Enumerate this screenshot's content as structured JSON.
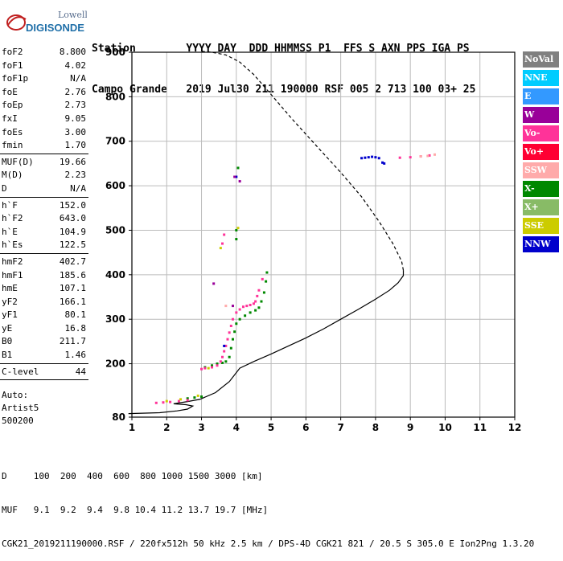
{
  "logo": {
    "line1": "Lowell",
    "line2": "DIGISONDE"
  },
  "header": {
    "row1": "Station        YYYY DAY  DDD HHMMSS P1  FFS S AXN PPS IGA PS",
    "row2": "Campo Grande   2019 Jul30 211 190000 RSF 005 2 713 100 03+ 25"
  },
  "params": {
    "group1": [
      {
        "label": "foF2",
        "value": "8.800"
      },
      {
        "label": "foF1",
        "value": "4.02"
      },
      {
        "label": "foF1p",
        "value": "N/A"
      },
      {
        "label": "foE",
        "value": "2.76"
      },
      {
        "label": "foEp",
        "value": "2.73"
      },
      {
        "label": "fxI",
        "value": "9.05"
      },
      {
        "label": "foEs",
        "value": "3.00"
      },
      {
        "label": "fmin",
        "value": "1.70"
      }
    ],
    "group2": [
      {
        "label": "MUF(D)",
        "value": "19.66"
      },
      {
        "label": "M(D)",
        "value": "2.23"
      },
      {
        "label": "D",
        "value": "N/A"
      }
    ],
    "group3": [
      {
        "label": "h`F",
        "value": "152.0"
      },
      {
        "label": "h`F2",
        "value": "643.0"
      },
      {
        "label": "h`E",
        "value": "104.9"
      },
      {
        "label": "h`Es",
        "value": "122.5"
      }
    ],
    "group4": [
      {
        "label": "hmF2",
        "value": "402.7"
      },
      {
        "label": "hmF1",
        "value": "185.6"
      },
      {
        "label": "hmE",
        "value": "107.1"
      },
      {
        "label": "yF2",
        "value": "166.1"
      },
      {
        "label": "yF1",
        "value": "80.1"
      },
      {
        "label": "yE",
        "value": "16.8"
      },
      {
        "label": "B0",
        "value": "211.7"
      },
      {
        "label": "B1",
        "value": "1.46"
      }
    ],
    "group5": [
      {
        "label": "C-level",
        "value": "44"
      }
    ]
  },
  "autoscaling": {
    "line1": "Auto:",
    "line2": "Artist5",
    "line3": "500200"
  },
  "legend": [
    {
      "label": "NoVal",
      "color": "#808080"
    },
    {
      "label": "NNE",
      "color": "#00ccff"
    },
    {
      "label": "E",
      "color": "#3399ff"
    },
    {
      "label": "W",
      "color": "#990099"
    },
    {
      "label": "Vo-",
      "color": "#ff3399"
    },
    {
      "label": "Vo+",
      "color": "#ff0033"
    },
    {
      "label": "SSW",
      "color": "#ffaaaa"
    },
    {
      "label": "X-",
      "color": "#008800"
    },
    {
      "label": "X+",
      "color": "#88bb66"
    },
    {
      "label": "SSE",
      "color": "#cccc00"
    },
    {
      "label": "NNW",
      "color": "#0000cc"
    }
  ],
  "footer": {
    "row1": "D     100  200  400  600  800 1000 1500 3000 [km]",
    "row2": "MUF   9.1  9.2  9.4  9.8 10.4 11.2 13.7 19.7 [MHz]",
    "row3": "CGK21_2019211190000.RSF / 220fx512h 50 kHz 2.5 km / DPS-4D CGK21 821 / 20.5 S 305.0 E Ion2Png 1.3.20"
  },
  "chart_data": {
    "type": "scatter",
    "xlim": [
      1,
      12
    ],
    "ylim": [
      80,
      900
    ],
    "xticks": [
      1,
      2,
      3,
      4,
      5,
      6,
      7,
      8,
      9,
      10,
      11,
      12
    ],
    "yticks": [
      80,
      200,
      300,
      400,
      500,
      600,
      700,
      800,
      900
    ],
    "grid": true,
    "legend_position": "right",
    "series": [
      {
        "kind": "line",
        "style": "solid",
        "color": "#000000",
        "x": [
          0.9,
          1.8,
          2.3,
          2.6,
          2.75,
          2.55,
          2.2,
          2.6,
          2.95,
          3.4,
          3.8,
          4.1,
          4.5,
          5.0,
          5.5,
          6.0,
          6.5,
          7.0,
          7.5,
          8.0,
          8.4,
          8.65,
          8.8,
          8.8
        ],
        "y": [
          88,
          90,
          94,
          98,
          105,
          108,
          110,
          115,
          120,
          135,
          160,
          190,
          205,
          222,
          240,
          258,
          278,
          300,
          322,
          345,
          365,
          382,
          398,
          410
        ]
      },
      {
        "kind": "line",
        "style": "dashed",
        "color": "#000000",
        "x": [
          8.8,
          8.75,
          8.5,
          8.1,
          7.6,
          7.0,
          6.3,
          5.6,
          5.0,
          4.5,
          4.1,
          3.7,
          3.3,
          3.0
        ],
        "y": [
          410,
          430,
          470,
          520,
          575,
          630,
          690,
          750,
          805,
          850,
          878,
          894,
          900,
          902
        ]
      },
      {
        "kind": "points",
        "name": "X-",
        "color": "#008800",
        "x": [
          2.6,
          2.8,
          3.0,
          3.1,
          3.3,
          3.45,
          3.6,
          3.7,
          3.8,
          3.85,
          3.9,
          3.95,
          4.0,
          4.1,
          4.25,
          4.4,
          4.55,
          4.65,
          4.72,
          4.8,
          4.85,
          4.88,
          4.0,
          4.0,
          4.05
        ],
        "y": [
          122,
          124,
          126,
          192,
          196,
          200,
          202,
          205,
          215,
          235,
          255,
          272,
          290,
          300,
          308,
          315,
          320,
          326,
          340,
          360,
          385,
          405,
          480,
          500,
          640
        ]
      },
      {
        "kind": "points",
        "name": "Vo-",
        "color": "#ff3399",
        "x": [
          1.7,
          1.9,
          2.1,
          2.35,
          2.6,
          3.0,
          3.1,
          3.3,
          3.45,
          3.55,
          3.6,
          3.65,
          3.7,
          3.75,
          3.8,
          3.85,
          3.9,
          4.0,
          4.1,
          4.2,
          4.3,
          4.4,
          4.5,
          4.55,
          4.6,
          4.65,
          3.6,
          3.65,
          4.75,
          8.7,
          9.0,
          9.3,
          9.55
        ],
        "y": [
          112,
          113,
          114,
          116,
          118,
          188,
          190,
          192,
          196,
          205,
          215,
          228,
          240,
          255,
          270,
          285,
          300,
          315,
          322,
          328,
          330,
          332,
          335,
          340,
          352,
          365,
          470,
          490,
          390,
          663,
          664,
          666,
          668
        ]
      },
      {
        "kind": "points",
        "name": "NNW",
        "color": "#0000cc",
        "x": [
          7.6,
          7.7,
          7.8,
          7.9,
          8.0,
          8.1,
          8.2,
          8.25,
          4.0,
          3.65
        ],
        "y": [
          662,
          663,
          664,
          665,
          664,
          662,
          652,
          650,
          620,
          240
        ]
      },
      {
        "kind": "points",
        "name": "SSE",
        "color": "#cccc00",
        "x": [
          2.0,
          2.4,
          2.9,
          3.2,
          4.05,
          3.55
        ],
        "y": [
          116,
          120,
          128,
          190,
          505,
          460
        ]
      },
      {
        "kind": "points",
        "name": "W",
        "color": "#990099",
        "x": [
          3.9,
          4.1,
          3.35,
          3.95
        ],
        "y": [
          330,
          610,
          380,
          620
        ]
      },
      {
        "kind": "points",
        "name": "SSW",
        "color": "#ffaaaa",
        "x": [
          9.3,
          9.5,
          9.7,
          3.7
        ],
        "y": [
          666,
          667,
          670,
          330
        ]
      }
    ]
  }
}
